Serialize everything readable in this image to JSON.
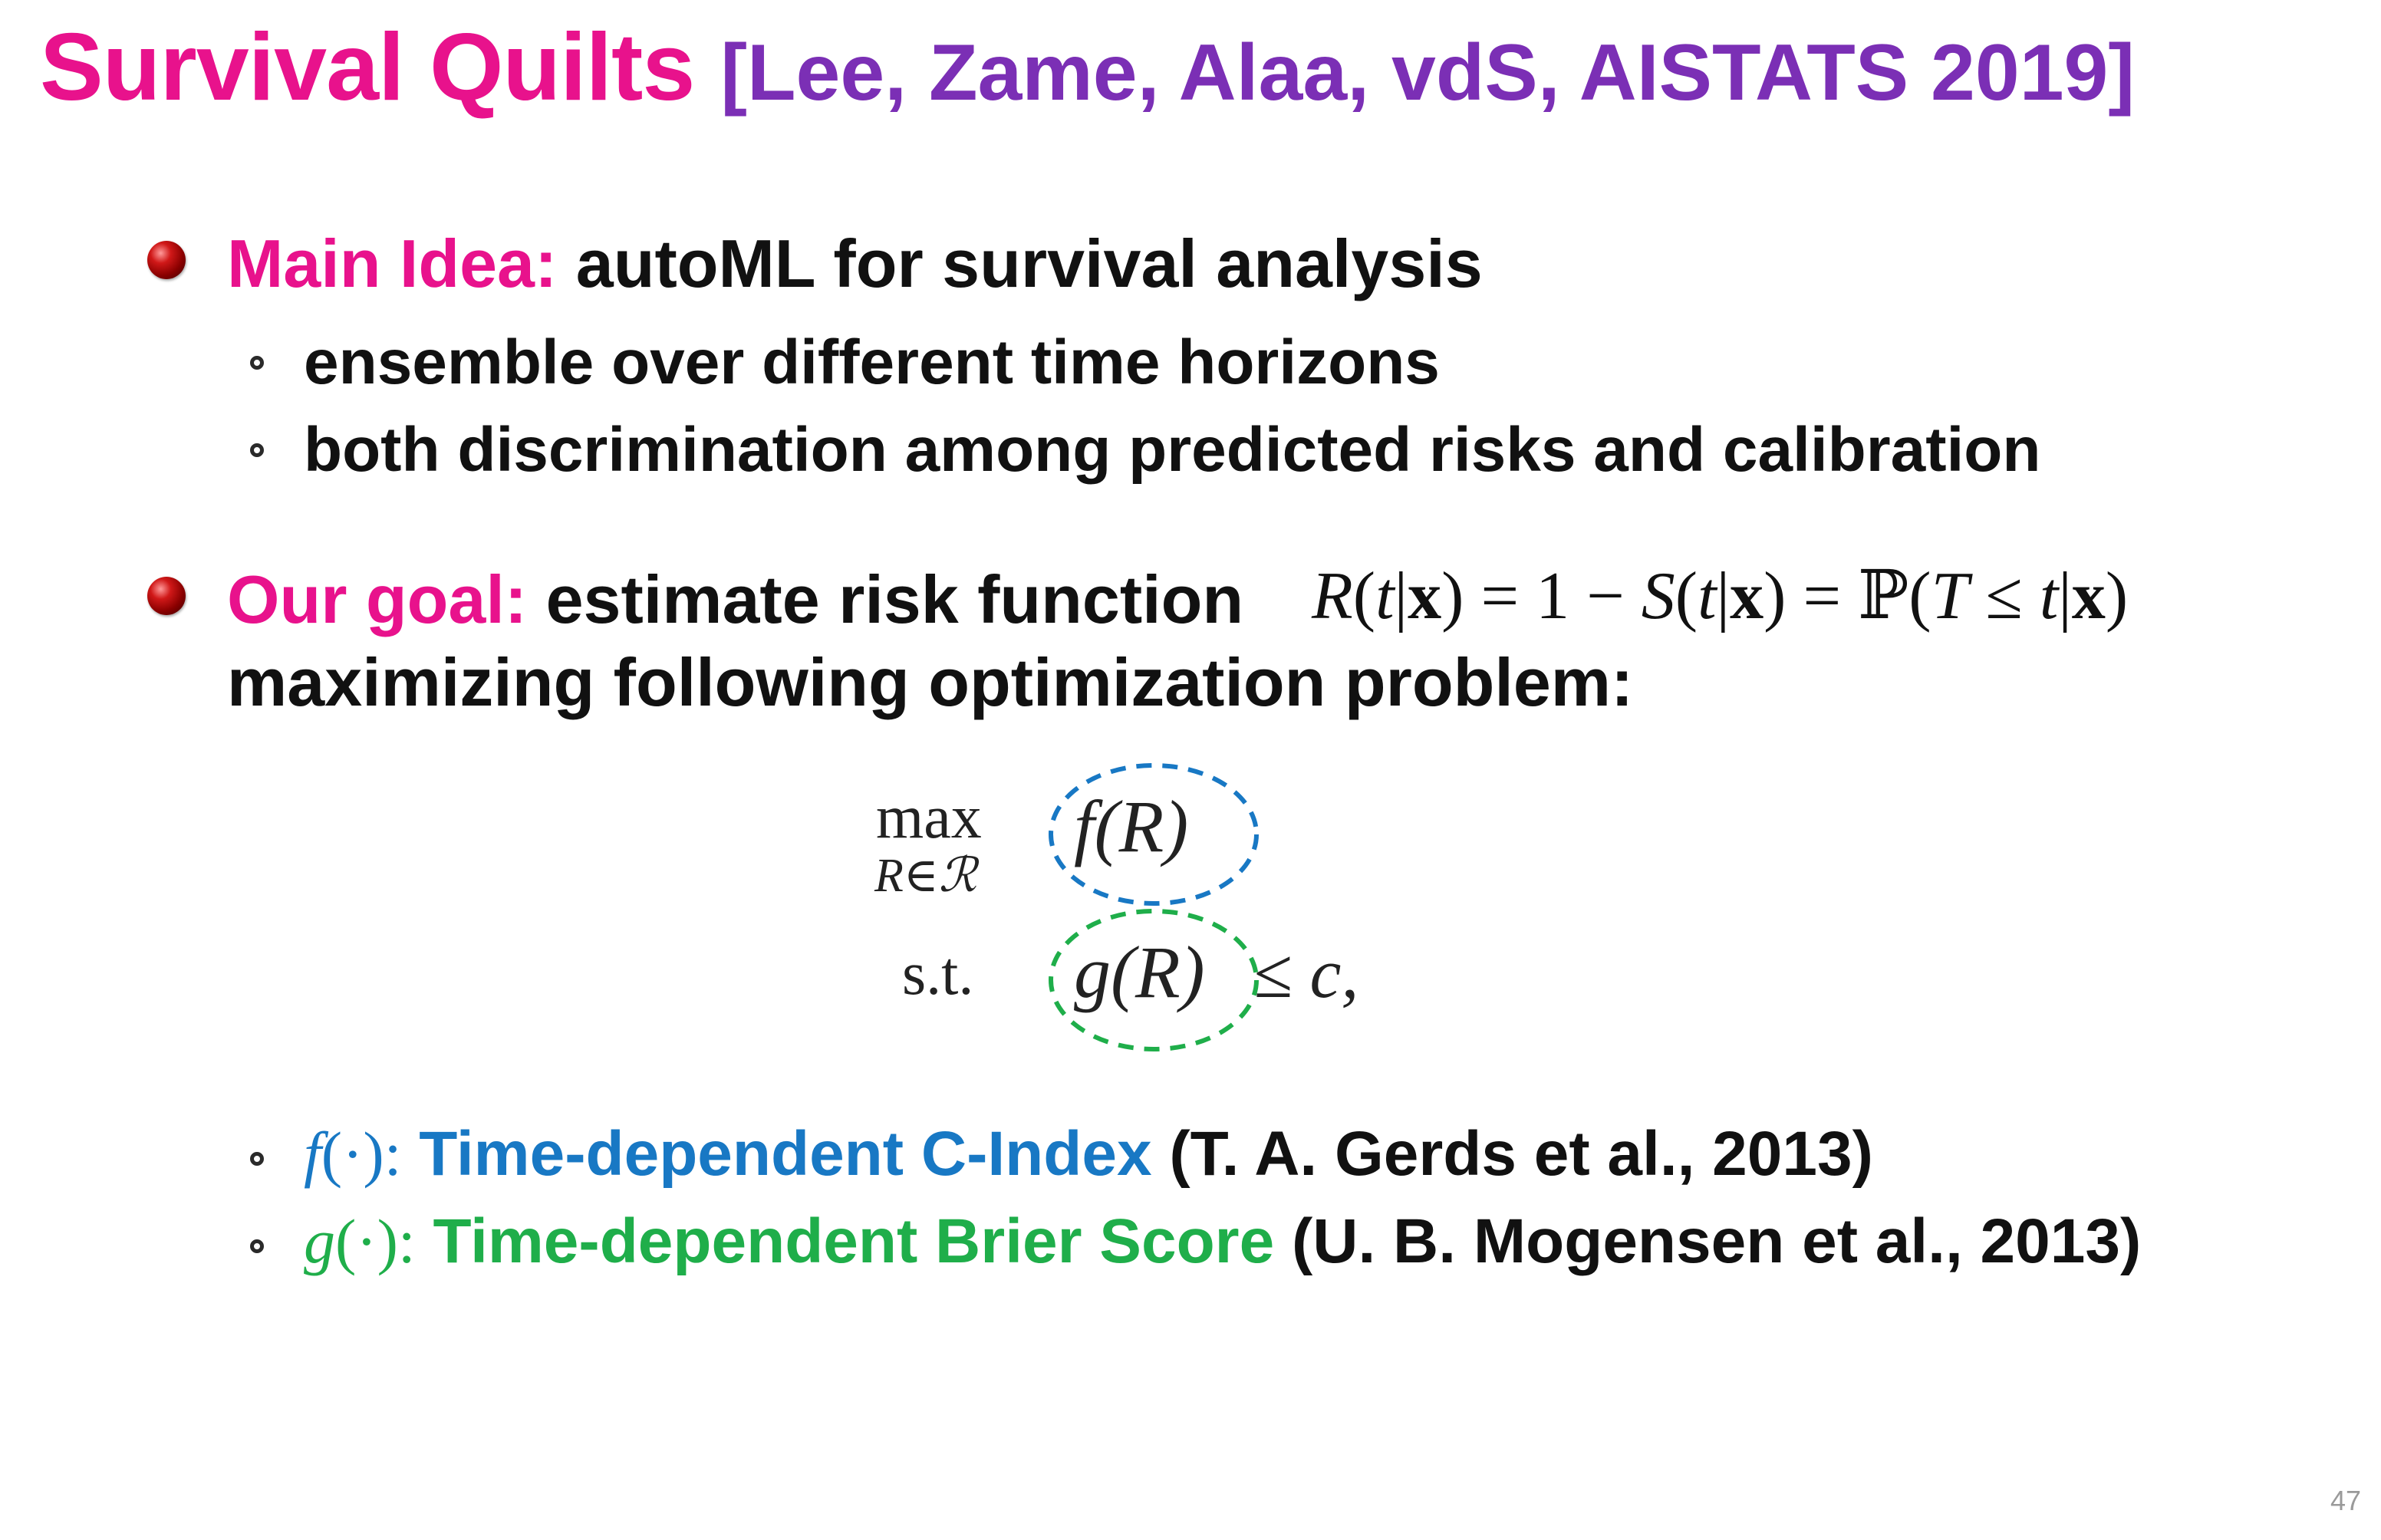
{
  "title": {
    "main": "Survival Quilts",
    "citation": "[Lee, Zame, Alaa, vdS, AISTATS 2019]"
  },
  "bullets": [
    {
      "key": "Main Idea:",
      "text": "autoML for survival analysis",
      "sub": [
        "ensemble over different time horizons",
        "both discrimination among predicted risks and calibration"
      ]
    },
    {
      "key": "Our goal:",
      "text": "estimate risk function",
      "formula": {
        "R": "R",
        "open": "(",
        "t": "t",
        "bar": "|",
        "x": "x",
        "close": ")",
        "eq1": "=",
        "one": "1",
        "minus": "−",
        "S": "S",
        "eq2": "=",
        "P": "ℙ",
        "T": "T",
        "le": "≤"
      },
      "line2": "maximizing following optimization problem:"
    }
  ],
  "optimization": {
    "max": "max",
    "sub": "R∈ℛ",
    "objective": "f(R)",
    "st": "s.t.",
    "constraint": "g(R)",
    "rhs": "≤ c,"
  },
  "metrics": [
    {
      "symbol": "f",
      "arg": "(·):",
      "name": "Time-dependent C-Index",
      "cite": "(T. A. Gerds et al., 2013)",
      "color": "#1878c4"
    },
    {
      "symbol": "g",
      "arg": "(·):",
      "name": "Time-dependent Brier Score",
      "cite": "(U. B. Mogensen et al., 2013)",
      "color": "#1fae4a"
    }
  ],
  "slide_number": "47"
}
